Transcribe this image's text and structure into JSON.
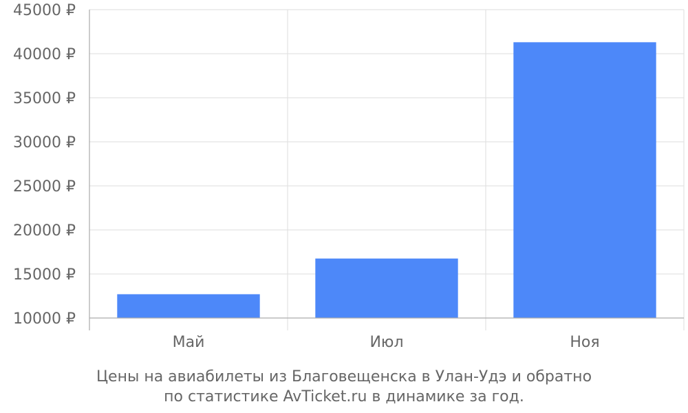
{
  "chart_data": {
    "type": "bar",
    "categories": [
      "Май",
      "Июл",
      "Ноя"
    ],
    "values": [
      12700,
      16750,
      41300
    ],
    "ylim": [
      10000,
      45000
    ],
    "yticks": [
      "10000 ₽",
      "15000 ₽",
      "20000 ₽",
      "25000 ₽",
      "30000 ₽",
      "35000 ₽",
      "40000 ₽",
      "45000 ₽"
    ],
    "ytick_values": [
      10000,
      15000,
      20000,
      25000,
      30000,
      35000,
      40000,
      45000
    ],
    "grid": true,
    "bar_color": "#4d88f9",
    "grid_color": "#dddddd"
  },
  "caption": {
    "line1": "Цены на авиабилеты из Благовещенска в Улан-Удэ и обратно",
    "line2": "по статистике AvTicket.ru в динамике за год."
  }
}
